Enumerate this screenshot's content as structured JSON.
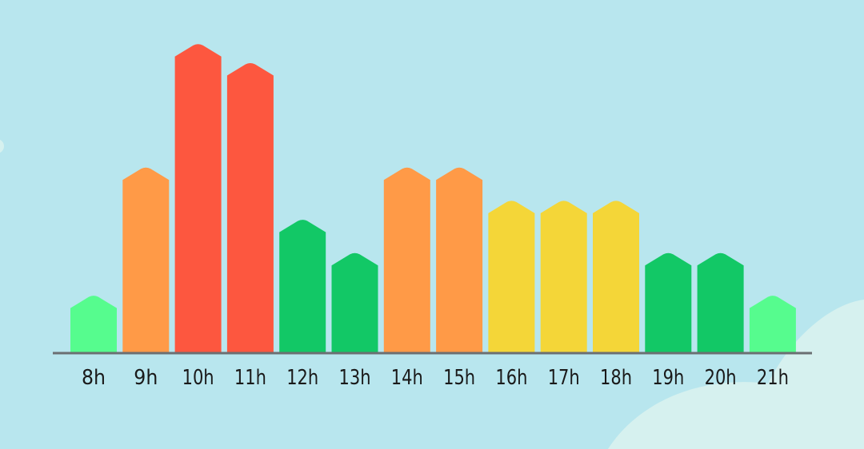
{
  "chart_data": {
    "type": "bar",
    "categories": [
      "8h",
      "9h",
      "10h",
      "11h",
      "12h",
      "13h",
      "14h",
      "15h",
      "16h",
      "17h",
      "18h",
      "19h",
      "20h",
      "21h"
    ],
    "values": [
      1.2,
      3.9,
      6.5,
      6.1,
      2.8,
      2.1,
      3.9,
      3.9,
      3.2,
      3.2,
      3.2,
      2.1,
      2.1,
      1.2
    ],
    "bar_colors": [
      "#56fc8e",
      "#ff9a47",
      "#fd573f",
      "#fd573f",
      "#12c866",
      "#12c866",
      "#ff9a47",
      "#ff9a47",
      "#f4d638",
      "#f4d638",
      "#f4d638",
      "#12c866",
      "#12c866",
      "#56fc8e"
    ],
    "ylim": [
      0,
      7
    ],
    "grid": false,
    "title": "",
    "xlabel": "",
    "ylabel": ""
  },
  "colors": {
    "background": "#b8e6ee",
    "axis": "#6b6f72",
    "label": "#1a1a1a",
    "blob": "#d6f1ef"
  }
}
